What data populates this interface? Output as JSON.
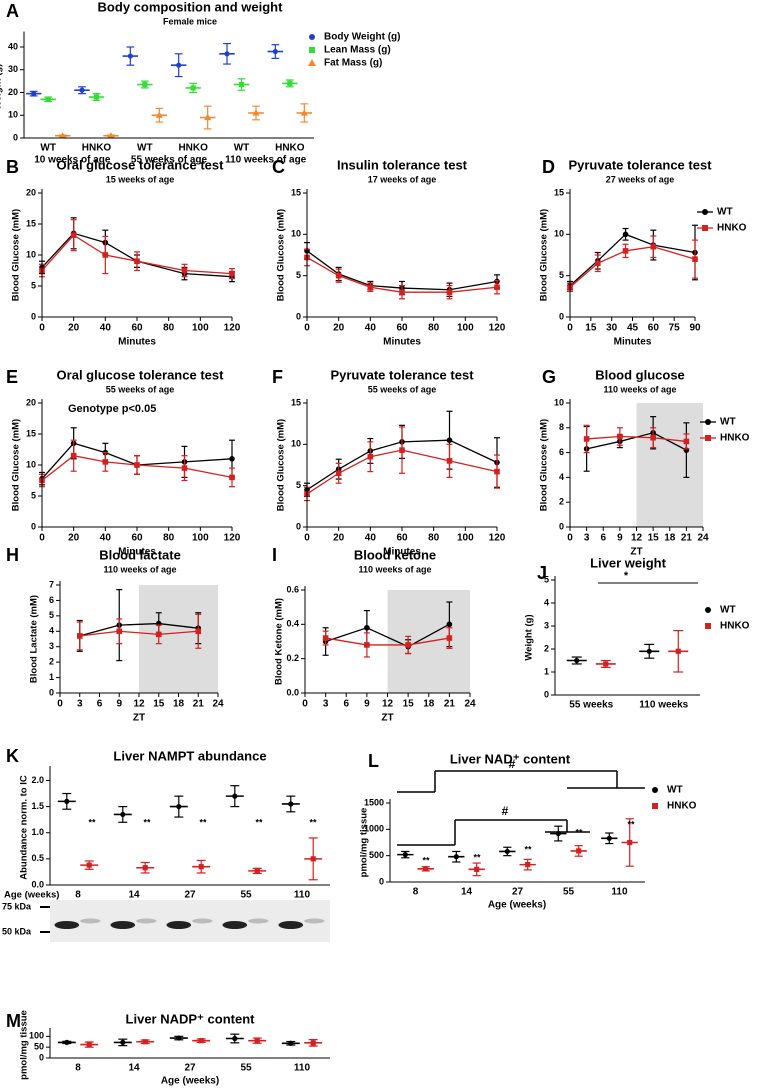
{
  "chart_data": [
    {
      "type": "dot",
      "label": "A",
      "title": "Body composition and weight",
      "subtitle": "Female mice",
      "ylabel": "Weight (g)",
      "categories": [
        "WT",
        "HNKO",
        "WT",
        "HNKO",
        "WT",
        "HNKO"
      ],
      "group_labels": [
        "10 weeks of age",
        "55 weeks of age",
        "110 weeks of age"
      ],
      "ylim": [
        0,
        45
      ],
      "yticks": [
        0,
        10,
        20,
        30,
        40
      ],
      "legend": true,
      "series": [
        {
          "name": "Body Weight (g)",
          "color": "#1f3fd0",
          "marker": "circle",
          "values": [
            19.5,
            21,
            36,
            32,
            37,
            38
          ],
          "errors": [
            1,
            1.5,
            4,
            5,
            4.5,
            3
          ]
        },
        {
          "name": "Lean Mass (g)",
          "color": "#33dd33",
          "marker": "square",
          "values": [
            17,
            18,
            23.5,
            22,
            23.5,
            24
          ],
          "errors": [
            1,
            1.5,
            1.5,
            2,
            2.5,
            1.5
          ]
        },
        {
          "name": "Fat Mass (g)",
          "color": "#f08a30",
          "marker": "triangle",
          "values": [
            1,
            1,
            10,
            9,
            11,
            11
          ],
          "errors": [
            0.3,
            0.3,
            3,
            5,
            3,
            4
          ]
        }
      ]
    },
    {
      "type": "line",
      "label": "B",
      "title": "Oral  glucose tolerance test",
      "subtitle": "15 weeks of age",
      "ylabel": "Blood Glucose (mM)",
      "xlabel": "Minutes",
      "x": [
        0,
        20,
        40,
        60,
        90,
        120
      ],
      "xlim": [
        0,
        120
      ],
      "xticks": [
        0,
        20,
        40,
        60,
        80,
        100,
        120
      ],
      "ylim": [
        0,
        20
      ],
      "yticks": [
        0,
        5,
        10,
        15,
        20
      ],
      "series": [
        {
          "color": "#000000",
          "marker": "circle",
          "values": [
            8,
            13.5,
            12,
            9,
            7,
            6.5
          ],
          "errors": [
            1,
            2.5,
            2,
            1,
            1,
            0.8
          ]
        },
        {
          "color": "#d42020",
          "marker": "square",
          "values": [
            7.5,
            13.2,
            10,
            9,
            7.5,
            7
          ],
          "errors": [
            1,
            2.5,
            3,
            1.5,
            1,
            0.8
          ]
        }
      ]
    },
    {
      "type": "line",
      "label": "C",
      "title": "Insulin  tolerance test",
      "subtitle": "17 weeks of age",
      "ylabel": "Blood Glucose (mM)",
      "xlabel": "Minutes",
      "x": [
        0,
        20,
        40,
        60,
        90,
        120
      ],
      "xlim": [
        0,
        120
      ],
      "xticks": [
        0,
        20,
        40,
        60,
        80,
        100,
        120
      ],
      "ylim": [
        0,
        15
      ],
      "yticks": [
        0,
        5,
        10,
        15
      ],
      "series": [
        {
          "color": "#000000",
          "marker": "circle",
          "values": [
            8,
            5.2,
            3.8,
            3.5,
            3.3,
            4.3
          ],
          "errors": [
            1,
            0.8,
            0.5,
            0.8,
            0.8,
            0.8
          ]
        },
        {
          "color": "#d42020",
          "marker": "square",
          "values": [
            7.2,
            5,
            3.6,
            3,
            3,
            3.6
          ],
          "errors": [
            1,
            0.8,
            0.5,
            0.8,
            0.8,
            0.8
          ]
        }
      ]
    },
    {
      "type": "line",
      "label": "D",
      "title": "Pyruvate tolerance test",
      "subtitle": "27 weeks of age",
      "ylabel": "Blood Glucose (mM)",
      "xlabel": "Minutes",
      "x": [
        0,
        20,
        40,
        60,
        90
      ],
      "xlim": [
        0,
        90
      ],
      "xticks": [
        0,
        15,
        30,
        45,
        60,
        75,
        90
      ],
      "ylim": [
        0,
        15
      ],
      "yticks": [
        0,
        5,
        10,
        15
      ],
      "legend": true,
      "series": [
        {
          "name": "WT",
          "color": "#000000",
          "marker": "circle",
          "values": [
            3.8,
            6.8,
            10,
            8.7,
            7.8
          ],
          "errors": [
            0.5,
            1,
            0.7,
            1.8,
            3.3
          ]
        },
        {
          "name": "HNKO",
          "color": "#d42020",
          "marker": "square",
          "values": [
            3.6,
            6.5,
            8,
            8.5,
            7
          ],
          "errors": [
            0.5,
            1,
            0.8,
            1.3,
            2.3
          ]
        }
      ]
    },
    {
      "type": "line",
      "label": "E",
      "title": "Oral glucose tolerance test",
      "subtitle": "55 weeks of age",
      "ylabel": "Blood Glucose (mM)",
      "xlabel": "Minutes",
      "annotations": [
        "Genotype p<0.05"
      ],
      "x": [
        0,
        20,
        40,
        60,
        90,
        120
      ],
      "xlim": [
        0,
        120
      ],
      "xticks": [
        0,
        20,
        40,
        60,
        80,
        100,
        120
      ],
      "ylim": [
        0,
        20
      ],
      "yticks": [
        0,
        5,
        10,
        15,
        20
      ],
      "series": [
        {
          "color": "#000000",
          "marker": "circle",
          "values": [
            7.8,
            13.5,
            12,
            10,
            10.5,
            11
          ],
          "errors": [
            1,
            2.5,
            1.5,
            1.5,
            2.5,
            3
          ]
        },
        {
          "color": "#d42020",
          "marker": "square",
          "values": [
            7.5,
            11.5,
            10.5,
            10,
            9.5,
            8
          ],
          "errors": [
            1,
            2.5,
            1.5,
            1.5,
            2,
            1.5
          ]
        }
      ]
    },
    {
      "type": "line",
      "label": "F",
      "title": "Pyruvate tolerance test",
      "subtitle": "55 weeks of age",
      "ylabel": "Blood Glucose (mM)",
      "xlabel": "Minutes",
      "x": [
        0,
        20,
        40,
        60,
        90,
        120
      ],
      "xlim": [
        0,
        120
      ],
      "xticks": [
        0,
        20,
        40,
        60,
        80,
        100,
        120
      ],
      "ylim": [
        0,
        15
      ],
      "yticks": [
        0,
        5,
        10,
        15
      ],
      "series": [
        {
          "color": "#000000",
          "marker": "circle",
          "values": [
            4.5,
            7,
            9.2,
            10.3,
            10.5,
            7.8
          ],
          "errors": [
            0.8,
            1.2,
            1.5,
            2,
            3.5,
            3
          ]
        },
        {
          "color": "#d42020",
          "marker": "square",
          "values": [
            4,
            6.5,
            8.5,
            9.3,
            8,
            6.7
          ],
          "errors": [
            0.8,
            1.2,
            1.8,
            2.8,
            2,
            2
          ]
        }
      ]
    },
    {
      "type": "line",
      "label": "G",
      "title": "Blood glucose",
      "subtitle": "110 weeks of age",
      "ylabel": "Blood Glucose (mM)",
      "xlabel": "ZT",
      "x": [
        3,
        9,
        15,
        21
      ],
      "xlim": [
        0,
        24
      ],
      "xticks": [
        0,
        3,
        6,
        9,
        12,
        15,
        18,
        21,
        24
      ],
      "ylim": [
        0,
        10
      ],
      "yticks": [
        0,
        2,
        4,
        6,
        8,
        10
      ],
      "shaded_x": [
        12,
        24
      ],
      "legend": true,
      "series": [
        {
          "name": "WT",
          "color": "#000000",
          "marker": "circle",
          "values": [
            6.3,
            6.9,
            7.6,
            6.2
          ],
          "errors": [
            1.8,
            0.5,
            1.3,
            2.2
          ]
        },
        {
          "name": "HNKO",
          "color": "#d42020",
          "marker": "square",
          "values": [
            7.1,
            7.3,
            7.2,
            6.9
          ],
          "errors": [
            1.1,
            0.7,
            0.8,
            0.6
          ]
        }
      ]
    },
    {
      "type": "line",
      "label": "H",
      "title": "Blood lactate",
      "subtitle": "110 weeks of age",
      "ylabel": "Blood Lactate (mM)",
      "xlabel": "ZT",
      "x": [
        3,
        9,
        15,
        21
      ],
      "xlim": [
        0,
        24
      ],
      "xticks": [
        0,
        3,
        6,
        9,
        12,
        15,
        18,
        21,
        24
      ],
      "ylim": [
        0,
        7
      ],
      "yticks": [
        0,
        1,
        2,
        3,
        4,
        5,
        6,
        7
      ],
      "shaded_x": [
        12,
        24
      ],
      "series": [
        {
          "color": "#000000",
          "marker": "circle",
          "values": [
            3.7,
            4.4,
            4.5,
            4.2
          ],
          "errors": [
            1,
            2.3,
            0.7,
            1
          ]
        },
        {
          "color": "#d42020",
          "marker": "square",
          "values": [
            3.7,
            4,
            3.8,
            4
          ],
          "errors": [
            0.9,
            0.8,
            0.6,
            1.1
          ]
        }
      ]
    },
    {
      "type": "line",
      "label": "I",
      "title": "Blood ketone",
      "subtitle": "110 weeks of age",
      "ylabel": "Blood Ketone (mM)",
      "xlabel": "ZT",
      "x": [
        3,
        9,
        15,
        21
      ],
      "xlim": [
        0,
        24
      ],
      "xticks": [
        0,
        3,
        6,
        9,
        12,
        15,
        18,
        21,
        24
      ],
      "ylim": [
        0,
        0.6
      ],
      "yticks": [
        {
          "value": 0,
          "label": "0.0"
        },
        0.2,
        0.4,
        0.6
      ],
      "shaded_x": [
        12,
        24
      ],
      "series": [
        {
          "color": "#000000",
          "marker": "circle",
          "values": [
            0.3,
            0.38,
            0.27,
            0.4
          ],
          "errors": [
            0.08,
            0.1,
            0.04,
            0.13
          ]
        },
        {
          "color": "#d42020",
          "marker": "square",
          "values": [
            0.32,
            0.28,
            0.28,
            0.32
          ],
          "errors": [
            0.04,
            0.07,
            0.05,
            0.06
          ]
        }
      ]
    },
    {
      "type": "dot",
      "label": "J",
      "title": "Liver weight",
      "ylabel": "Weight (g)",
      "categories": [
        "55 weeks",
        "110 weeks"
      ],
      "ylim": [
        0,
        5
      ],
      "yticks": [
        0,
        1,
        2,
        3,
        4,
        5
      ],
      "legend": true,
      "annotations": [
        "*"
      ],
      "series": [
        {
          "name": "WT",
          "color": "#000000",
          "marker": "circle",
          "values": [
            1.5,
            1.9
          ],
          "errors": [
            0.15,
            0.3
          ]
        },
        {
          "name": "HNKO",
          "color": "#d42020",
          "marker": "square",
          "values": [
            1.35,
            1.9
          ],
          "errors": [
            0.15,
            0.9
          ]
        }
      ]
    },
    {
      "type": "dot",
      "label": "K",
      "title": "Liver NAMPT abundance",
      "ylabel": "Abundance norm. to IC",
      "xlabel": "Age (weeks)",
      "categories": [
        "8",
        "14",
        "27",
        "55",
        "110"
      ],
      "ylim": [
        0,
        2.2
      ],
      "yticks": [
        {
          "value": 0,
          "label": "0.0"
        },
        0.5,
        {
          "value": 1,
          "label": "1.0"
        },
        1.5,
        {
          "value": 2,
          "label": "2.0"
        }
      ],
      "annotations": [
        "**",
        "**",
        "**",
        "**",
        "**"
      ],
      "blot_labels": [
        "75 kDa",
        "50 kDa"
      ],
      "series": [
        {
          "color": "#000000",
          "marker": "circle",
          "values": [
            1.6,
            1.35,
            1.5,
            1.7,
            1.55
          ],
          "errors": [
            0.15,
            0.15,
            0.2,
            0.2,
            0.15
          ]
        },
        {
          "color": "#d42020",
          "marker": "square",
          "values": [
            0.38,
            0.33,
            0.35,
            0.27,
            0.5
          ],
          "errors": [
            0.08,
            0.1,
            0.12,
            0.05,
            0.4
          ]
        }
      ]
    },
    {
      "type": "dot",
      "label": "L",
      "title": "Liver NAD⁺ content",
      "ylabel": "pmol/mg tissue",
      "xlabel": "Age (weeks)",
      "categories": [
        "8",
        "14",
        "27",
        "55",
        "110"
      ],
      "ylim": [
        0,
        1500
      ],
      "yticks": [
        0,
        500,
        1000,
        1500
      ],
      "legend": true,
      "annotations": [
        "#",
        "#",
        "**",
        "**",
        "**",
        "**",
        "**"
      ],
      "series": [
        {
          "name": "WT",
          "color": "#000000",
          "marker": "circle",
          "values": [
            520,
            480,
            580,
            920,
            830
          ],
          "errors": [
            60,
            100,
            80,
            140,
            100
          ]
        },
        {
          "name": "HNKO",
          "color": "#d42020",
          "marker": "square",
          "values": [
            250,
            240,
            330,
            590,
            750
          ],
          "errors": [
            40,
            120,
            100,
            100,
            450
          ]
        }
      ]
    },
    {
      "type": "dot",
      "label": "M",
      "title": "Liver NADP⁺ content",
      "ylabel": "pmol/mg tissue",
      "xlabel": "Age (weeks)",
      "categories": [
        "8",
        "14",
        "27",
        "55",
        "110"
      ],
      "ylim": [
        0,
        120
      ],
      "yticks": [
        0,
        50,
        100
      ],
      "series": [
        {
          "color": "#000000",
          "marker": "circle",
          "values": [
            72,
            72,
            92,
            90,
            68
          ],
          "errors": [
            5,
            15,
            8,
            20,
            8
          ]
        },
        {
          "color": "#d42020",
          "marker": "square",
          "values": [
            62,
            75,
            80,
            80,
            70
          ],
          "errors": [
            12,
            8,
            8,
            12,
            15
          ]
        }
      ]
    }
  ]
}
